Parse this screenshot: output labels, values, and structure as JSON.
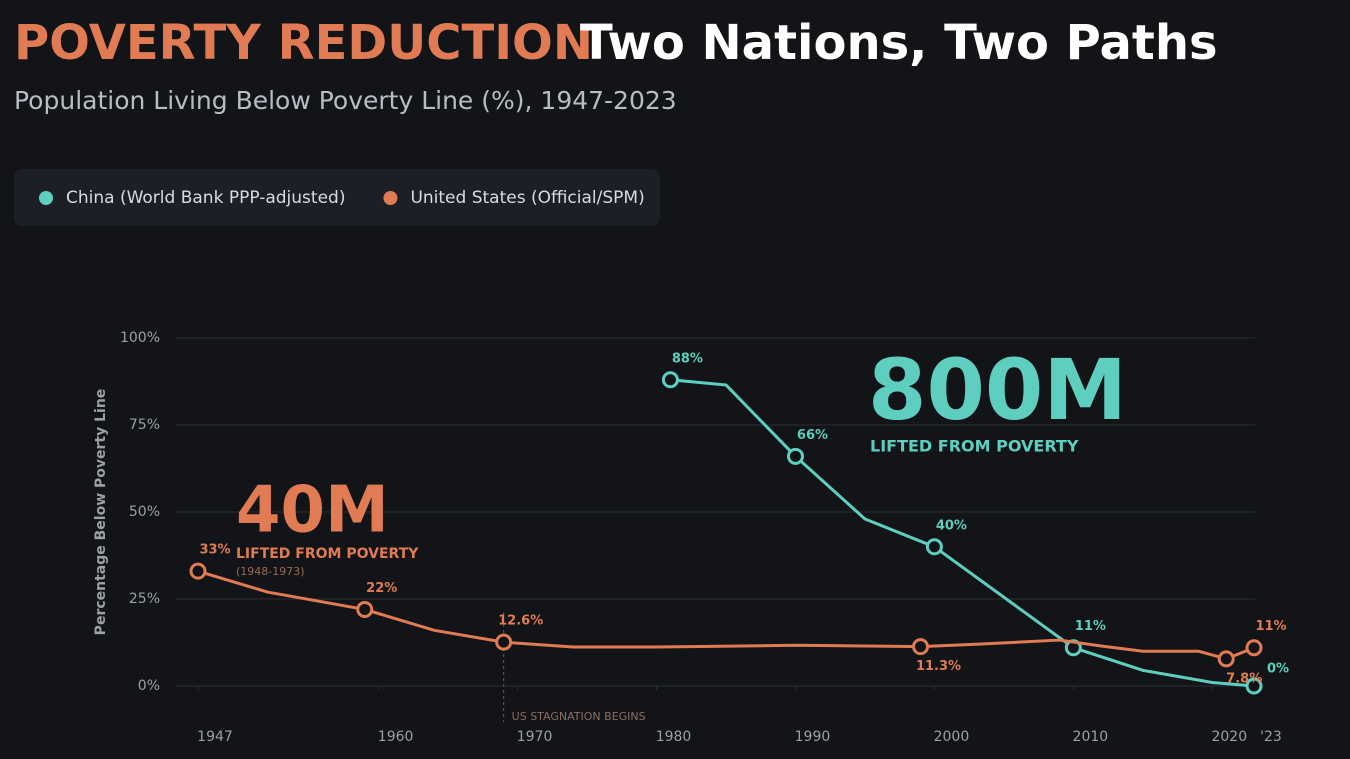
{
  "chart_data": {
    "type": "line",
    "title": {
      "highlight": "POVERTY REDUCTION",
      "rest": "Two Nations, Two Paths"
    },
    "subtitle": "Population Living Below Poverty Line (%), 1947-2023",
    "y_label": "Percentage Below Poverty Line",
    "xlim": [
      1947,
      2023
    ],
    "xticks": [
      1947,
      1960,
      1970,
      1980,
      1990,
      2000,
      2010,
      2020,
      {
        "value": 2023,
        "label": "'23"
      }
    ],
    "ylim": [
      0,
      100
    ],
    "yticks": [
      {
        "value": 0,
        "label": "0%"
      },
      {
        "value": 25,
        "label": "25%"
      },
      {
        "value": 50,
        "label": "50%"
      },
      {
        "value": 75,
        "label": "75%"
      },
      {
        "value": 100,
        "label": "100%"
      }
    ],
    "grid": true,
    "series": [
      {
        "name": "China (World Bank PPP-adjusted)",
        "color": "#5ecfbf",
        "x": [
          1981,
          1985,
          1990,
          1995,
          2000,
          2010,
          2015,
          2020,
          2023
        ],
        "values": [
          88,
          86.5,
          66,
          48,
          40,
          11,
          4.5,
          1,
          0
        ],
        "value_labels": [
          "88%",
          null,
          "66%",
          null,
          "40%",
          "11%",
          null,
          null,
          "0%"
        ]
      },
      {
        "name": "United States (Official/SPM)",
        "color": "#e07b54",
        "x": [
          1947,
          1952,
          1959,
          1964,
          1969,
          1974,
          1980,
          1990,
          1995,
          1999,
          2003,
          2009,
          2012,
          2015,
          2019,
          2021,
          2023
        ],
        "values": [
          33,
          27,
          22,
          16,
          12.6,
          11.2,
          11.2,
          11.7,
          11.5,
          11.3,
          12,
          13.2,
          11.5,
          10,
          10,
          7.8,
          11
        ],
        "value_labels": [
          "33%",
          null,
          "22%",
          null,
          "12.6%",
          null,
          null,
          null,
          null,
          "11.3%",
          null,
          null,
          null,
          null,
          null,
          "7.8%",
          "11%"
        ]
      }
    ],
    "annotations": [
      {
        "big": "800M",
        "text": "LIFTED FROM POVERTY"
      },
      {
        "big": "40M",
        "text": "LIFTED FROM POVERTY",
        "note": "(1948-1973)"
      },
      {
        "text": "US STAGNATION BEGINS",
        "x": 1969
      }
    ]
  }
}
